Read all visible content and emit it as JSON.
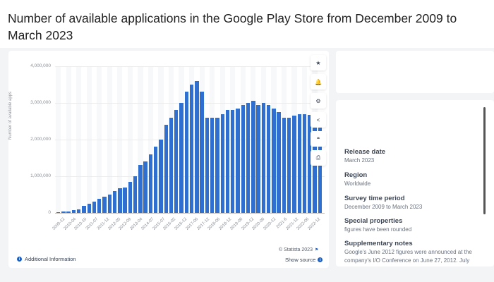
{
  "page": {
    "title": "Number of available applications in the Google Play Store from December 2009 to March 2023"
  },
  "toolbar": {
    "buttons": [
      {
        "name": "star-icon",
        "glyph": "★"
      },
      {
        "name": "bell-icon",
        "glyph": "🔔"
      },
      {
        "name": "gear-icon",
        "glyph": "⚙"
      },
      {
        "name": "share-icon",
        "glyph": "<"
      },
      {
        "name": "quote-icon",
        "glyph": "❝"
      },
      {
        "name": "print-icon",
        "glyph": "⎙"
      }
    ]
  },
  "meta": {
    "release_date_label": "Release date",
    "release_date_value": "March 2023",
    "region_label": "Region",
    "region_value": "Worldwide",
    "survey_label": "Survey time period",
    "survey_value": "December 2009 to March 2023",
    "special_label": "Special properties",
    "special_value": "figures have been rounded",
    "notes_label": "Supplementary notes",
    "notes_value_1": "Google's June 2012 figures were announced at the",
    "notes_value_2": "company's I/O Conference on June 27, 2012. July"
  },
  "footer": {
    "additional_info": "Additional Information",
    "copyright": "© Statista 2023",
    "show_source": "Show source"
  },
  "colors": {
    "bar": "#2f6fd0",
    "accent": "#1d5fbf"
  },
  "chart_data": {
    "type": "bar",
    "title": "Number of available applications in the Google Play Store from December 2009 to March 2023",
    "xlabel": "",
    "ylabel": "Number of available apps",
    "ylim": [
      0,
      4000000
    ],
    "yticks": [
      "0",
      "1,000,000",
      "2,000,000",
      "3,000,000",
      "4,000,000"
    ],
    "grid": true,
    "legend": "none",
    "xtick_labels": [
      "2009-12",
      "2010-04",
      "2010-10",
      "2011-07",
      "2011-12",
      "2012-05",
      "2012-09",
      "2013-04",
      "2014-07",
      "2015-07",
      "2016-02",
      "2016-12",
      "2017-06",
      "2017-12",
      "2018-06",
      "2018-12",
      "2019-06",
      "2019-12",
      "2020-06",
      "2020-12",
      "2021-6",
      "2021-12",
      "2022-06",
      "2022-12"
    ],
    "values": [
      16000,
      30000,
      38000,
      70000,
      100000,
      200000,
      250000,
      300000,
      380000,
      450000,
      500000,
      600000,
      675000,
      700000,
      850000,
      1000000,
      1300000,
      1400000,
      1600000,
      1800000,
      2000000,
      2400000,
      2600000,
      2800000,
      3000000,
      3300000,
      3500000,
      3600000,
      3300000,
      2600000,
      2600000,
      2600000,
      2700000,
      2800000,
      2800000,
      2850000,
      2950000,
      3000000,
      3050000,
      2950000,
      3000000,
      2950000,
      2850000,
      2750000,
      2600000,
      2600000,
      2650000,
      2700000,
      2700000,
      2680000,
      2680000,
      2670000
    ]
  }
}
